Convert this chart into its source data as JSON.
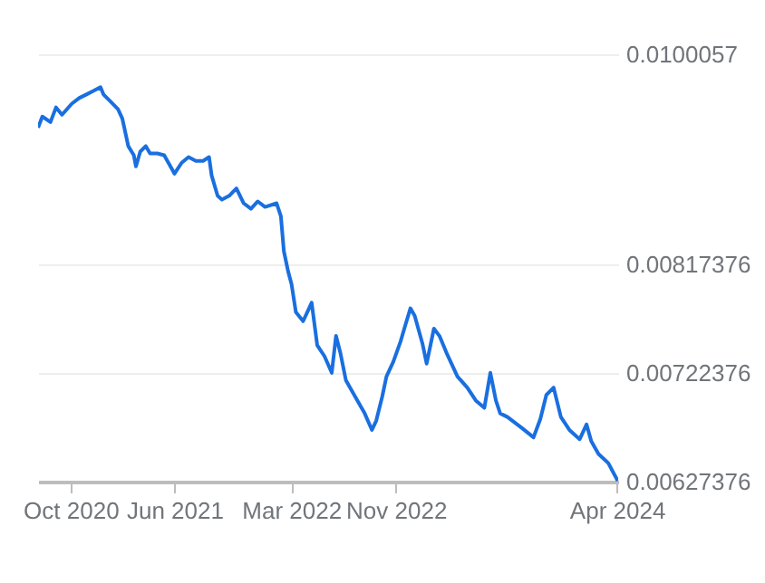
{
  "chart_data": {
    "type": "line",
    "x": [
      "2020-07-17",
      "2020-07-27",
      "2020-08-15",
      "2020-08-28",
      "2020-09-11",
      "2020-10-04",
      "2020-10-21",
      "2020-11-07",
      "2020-11-24",
      "2020-12-10",
      "2020-12-17",
      "2021-01-03",
      "2021-01-20",
      "2021-01-30",
      "2021-02-13",
      "2021-02-26",
      "2021-03-03",
      "2021-03-13",
      "2021-03-26",
      "2021-04-05",
      "2021-04-22",
      "2021-05-08",
      "2021-05-25",
      "2021-06-01",
      "2021-06-18",
      "2021-07-04",
      "2021-07-21",
      "2021-08-07",
      "2021-08-21",
      "2021-08-27",
      "2021-09-10",
      "2021-09-20",
      "2021-10-07",
      "2021-10-24",
      "2021-11-10",
      "2021-11-27",
      "2021-12-13",
      "2021-12-30",
      "2022-01-26",
      "2022-02-05",
      "2022-02-12",
      "2022-02-22",
      "2022-03-02",
      "2022-03-12",
      "2022-03-29",
      "2022-04-08",
      "2022-04-18",
      "2022-05-01",
      "2022-05-18",
      "2022-06-04",
      "2022-06-14",
      "2022-06-24",
      "2022-07-07",
      "2022-08-03",
      "2022-08-20",
      "2022-09-06",
      "2022-09-16",
      "2022-09-30",
      "2022-10-10",
      "2022-10-26",
      "2022-11-12",
      "2022-11-22",
      "2022-12-05",
      "2022-12-15",
      "2023-01-02",
      "2023-01-12",
      "2023-01-29",
      "2023-02-11",
      "2023-03-01",
      "2023-03-25",
      "2023-04-17",
      "2023-05-07",
      "2023-05-27",
      "2023-06-10",
      "2023-06-23",
      "2023-07-03",
      "2023-07-20",
      "2023-08-23",
      "2023-09-19",
      "2023-10-05",
      "2023-10-19",
      "2023-11-05",
      "2023-11-22",
      "2023-12-12",
      "2024-01-05",
      "2024-01-21",
      "2024-02-01",
      "2024-02-18",
      "2024-03-12",
      "2024-04-03"
    ],
    "series": [
      {
        "color": "#1a6fe0",
        "values": [
          0.009365,
          0.009462,
          0.009414,
          0.009542,
          0.009478,
          0.009575,
          0.009623,
          0.009655,
          0.009687,
          0.009719,
          0.009655,
          0.009591,
          0.009526,
          0.009446,
          0.009204,
          0.009124,
          0.009027,
          0.009156,
          0.009204,
          0.00914,
          0.00914,
          0.009124,
          0.009011,
          0.008963,
          0.009059,
          0.009108,
          0.009075,
          0.009075,
          0.009108,
          0.008947,
          0.00877,
          0.008737,
          0.00877,
          0.008834,
          0.008705,
          0.008657,
          0.008721,
          0.008673,
          0.008705,
          0.008592,
          0.008286,
          0.008109,
          0.007997,
          0.007755,
          0.007675,
          0.007755,
          0.007836,
          0.007465,
          0.007369,
          0.007224,
          0.007546,
          0.007401,
          0.00716,
          0.006982,
          0.00687,
          0.006725,
          0.006805,
          0.007015,
          0.007192,
          0.007321,
          0.007498,
          0.007626,
          0.007787,
          0.007723,
          0.007482,
          0.007304,
          0.00761,
          0.007546,
          0.007385,
          0.007192,
          0.007095,
          0.006982,
          0.006918,
          0.007224,
          0.006982,
          0.00687,
          0.006838,
          0.006741,
          0.00666,
          0.006821,
          0.007031,
          0.007095,
          0.006838,
          0.006725,
          0.006644,
          0.006773,
          0.006628,
          0.006515,
          0.006435,
          0.00628
        ]
      }
    ],
    "xlim": [
      "2020-07-17",
      "2024-04-04"
    ],
    "xticks": [
      {
        "value": "2020-10-01",
        "label": "Oct 2020"
      },
      {
        "value": "2021-06-01",
        "label": "Jun 2021"
      },
      {
        "value": "2022-03-01",
        "label": "Mar 2022"
      },
      {
        "value": "2022-11-01",
        "label": "Nov 2022"
      },
      {
        "value": "2024-04-01",
        "label": "Apr 2024"
      }
    ],
    "ylim": [
      0.00627376,
      0.0100057
    ],
    "yticks": [
      0.00627376,
      0.00722376,
      0.00817376,
      0.0100057
    ],
    "grid": "y"
  }
}
